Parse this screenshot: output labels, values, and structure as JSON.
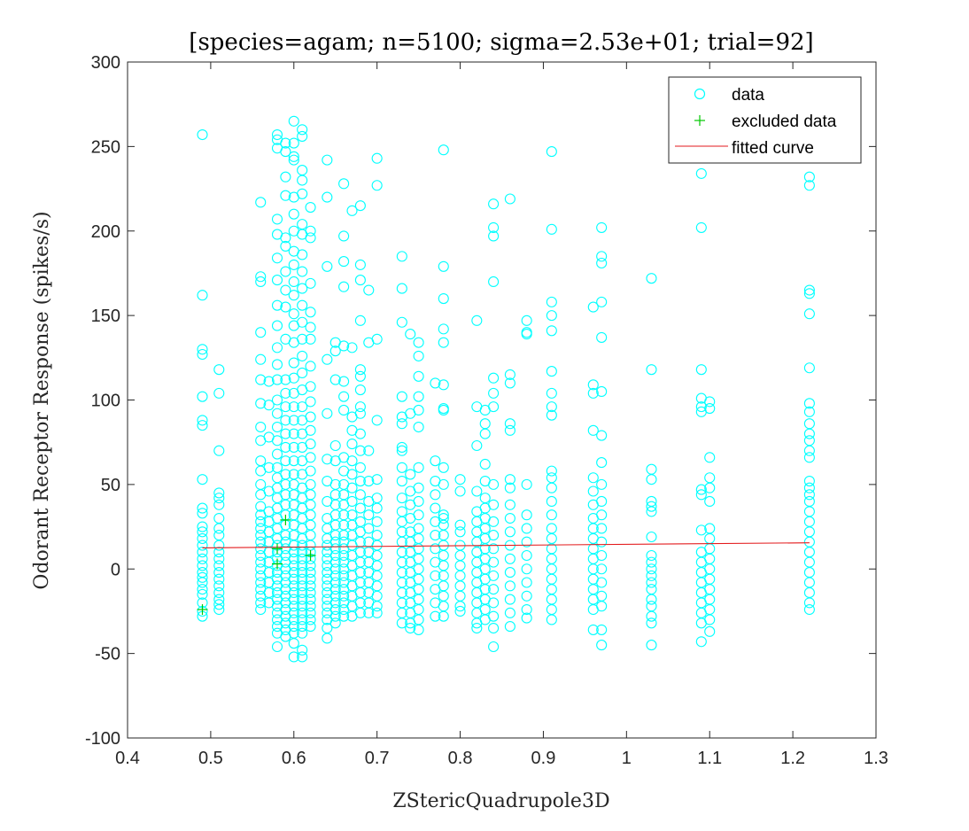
{
  "chart_data": {
    "type": "scatter",
    "title": "[species=agam; n=5100; sigma=2.53e+01; trial=92]",
    "xlabel": "ZStericQuadrupole3D",
    "ylabel": "Odorant Receptor Response (spikes/s)",
    "xlim": [
      0.4,
      1.3
    ],
    "ylim": [
      -100,
      300
    ],
    "xticks": [
      0.4,
      0.5,
      0.6,
      0.7,
      0.8,
      0.9,
      1.0,
      1.1,
      1.2,
      1.3
    ],
    "xtick_labels": [
      "0.4",
      "0.5",
      "0.6",
      "0.7",
      "0.8",
      "0.9",
      "1",
      "1.1",
      "1.2",
      "1.3"
    ],
    "yticks": [
      -100,
      -50,
      0,
      50,
      100,
      150,
      200,
      250,
      300
    ],
    "ytick_labels": [
      "-100",
      "-50",
      "0",
      "50",
      "100",
      "150",
      "200",
      "250",
      "300"
    ],
    "grid": false,
    "legend_position": "top-right",
    "colors": {
      "data": "#00ffff",
      "excluded": "#00c800",
      "fit": "#e31a1c",
      "axes": "#262626"
    },
    "series": [
      {
        "name": "data",
        "marker": "circle",
        "columns": [
          {
            "x": 0.49,
            "y": [
              257,
              162,
              130,
              127,
              102,
              88,
              85,
              53,
              36,
              33,
              25,
              22,
              18,
              14,
              10,
              6,
              2,
              -2,
              -5,
              -8,
              -12,
              -15,
              -20,
              -25,
              -28
            ]
          },
          {
            "x": 0.51,
            "y": [
              118,
              104,
              70,
              45,
              42,
              38,
              30,
              24,
              20,
              14,
              10,
              6,
              2,
              -2,
              -6,
              -10,
              -14,
              -18,
              -21,
              -24
            ]
          },
          {
            "x": 0.56,
            "y": [
              217,
              173,
              170,
              140,
              124,
              112,
              98,
              84,
              76,
              64,
              58,
              50,
              44,
              37,
              32,
              28,
              24,
              20,
              16,
              12,
              8,
              4,
              0,
              -4,
              -8,
              -12,
              -16,
              -20,
              -24
            ]
          },
          {
            "x": 0.57,
            "y": [
              111,
              97,
              78,
              60,
              46,
              34,
              28,
              22,
              16,
              10,
              4,
              -2,
              -8,
              -14,
              -20
            ]
          },
          {
            "x": 0.58,
            "y": [
              257,
              254,
              249,
              207,
              198,
              184,
              171,
              156,
              144,
              131,
              121,
              112,
              100,
              92,
              84,
              76,
              68,
              60,
              54,
              48,
              42,
              36,
              30,
              24,
              18,
              14,
              10,
              6,
              2,
              -2,
              -6,
              -10,
              -14,
              -18,
              -22,
              -26,
              -30,
              -34,
              -38,
              -46
            ]
          },
          {
            "x": 0.59,
            "y": [
              252,
              247,
              232,
              221,
              196,
              191,
              176,
              165,
              155,
              136,
              112,
              104,
              96,
              88,
              80,
              72,
              64,
              56,
              50,
              44,
              38,
              32,
              26,
              20,
              16,
              12,
              8,
              4,
              0,
              -4,
              -8,
              -12,
              -16,
              -20,
              -24,
              -28,
              -32,
              -36,
              -40
            ]
          },
          {
            "x": 0.6,
            "y": [
              265,
              252,
              244,
              242,
              220,
              210,
              200,
              188,
              180,
              170,
              162,
              151,
              144,
              134,
              122,
              113,
              104,
              96,
              88,
              80,
              72,
              64,
              56,
              50,
              44,
              38,
              32,
              26,
              20,
              14,
              10,
              6,
              2,
              -2,
              -6,
              -10,
              -14,
              -18,
              -22,
              -26,
              -30,
              -34,
              -38,
              -44,
              -52
            ]
          },
          {
            "x": 0.61,
            "y": [
              260,
              256,
              236,
              230,
              222,
              204,
              198,
              186,
              176,
              166,
              156,
              146,
              136,
              126,
              116,
              106,
              96,
              88,
              80,
              72,
              64,
              56,
              48,
              42,
              36,
              30,
              24,
              18,
              14,
              10,
              6,
              2,
              -2,
              -6,
              -10,
              -14,
              -18,
              -22,
              -26,
              -30,
              -34,
              -38,
              -48,
              -52
            ]
          },
          {
            "x": 0.62,
            "y": [
              214,
              200,
              196,
              169,
              152,
              143,
              136,
              120,
              108,
              99,
              90,
              82,
              74,
              66,
              58,
              50,
              44,
              38,
              32,
              26,
              20,
              14,
              10,
              6,
              2,
              -2,
              -6,
              -10,
              -14,
              -18,
              -22,
              -26,
              -30,
              -34
            ]
          },
          {
            "x": 0.64,
            "y": [
              242,
              220,
              179,
              124,
              92,
              65,
              52,
              40,
              30,
              24,
              18,
              14,
              10,
              6,
              2,
              -2,
              -6,
              -10,
              -14,
              -18,
              -22,
              -26,
              -30,
              -35,
              -41
            ]
          },
          {
            "x": 0.65,
            "y": [
              134,
              129,
              112,
              73,
              64,
              50,
              44,
              38,
              32,
              26,
              20,
              16,
              12,
              8,
              4,
              0,
              -4,
              -8,
              -12,
              -16,
              -20,
              -24,
              -28,
              -32
            ]
          },
          {
            "x": 0.66,
            "y": [
              228,
              197,
              182,
              167,
              132,
              111,
              102,
              94,
              66,
              58,
              50,
              44,
              38,
              32,
              26,
              20,
              16,
              12,
              8,
              4,
              0,
              -4,
              -8,
              -12,
              -16,
              -20,
              -24,
              -28
            ]
          },
          {
            "x": 0.67,
            "y": [
              212,
              131,
              90,
              82,
              74,
              64,
              56,
              48,
              40,
              32,
              26,
              20,
              14,
              8,
              2,
              -4,
              -10,
              -16,
              -22,
              -28
            ]
          },
          {
            "x": 0.68,
            "y": [
              215,
              180,
              171,
              147,
              118,
              114,
              106,
              96,
              92,
              80,
              70,
              60,
              52,
              44,
              36,
              28,
              22,
              16,
              10,
              4,
              -2,
              -8,
              -14,
              -20,
              -26
            ]
          },
          {
            "x": 0.69,
            "y": [
              165,
              134,
              70,
              52,
              40,
              32,
              24,
              16,
              10,
              4,
              -2,
              -8,
              -14,
              -20,
              -26
            ]
          },
          {
            "x": 0.7,
            "y": [
              243,
              227,
              136,
              88,
              53,
              42,
              36,
              28,
              20,
              14,
              8,
              2,
              -4,
              -10,
              -16,
              -22,
              -26
            ]
          },
          {
            "x": 0.73,
            "y": [
              185,
              166,
              146,
              102,
              90,
              86,
              72,
              70,
              60,
              52,
              42,
              34,
              28,
              22,
              16,
              10,
              4,
              -2,
              -8,
              -14,
              -20,
              -26,
              -32
            ]
          },
          {
            "x": 0.74,
            "y": [
              139,
              92,
              56,
              46,
              38,
              30,
              22,
              16,
              10,
              4,
              -2,
              -8,
              -14,
              -20,
              -26,
              -32,
              -35
            ]
          },
          {
            "x": 0.75,
            "y": [
              134,
              126,
              114,
              102,
              94,
              84,
              60,
              48,
              40,
              32,
              24,
              18,
              12,
              6,
              0,
              -6,
              -12,
              -18,
              -24,
              -30,
              -36
            ]
          },
          {
            "x": 0.77,
            "y": [
              110,
              64,
              52,
              44,
              36,
              28,
              20,
              12,
              4,
              -4,
              -12,
              -20,
              -28
            ]
          },
          {
            "x": 0.78,
            "y": [
              248,
              179,
              160,
              142,
              134,
              109,
              95,
              94,
              60,
              50,
              32,
              30,
              26,
              20,
              14,
              8,
              2,
              -4,
              -10,
              -16,
              -22,
              -28
            ]
          },
          {
            "x": 0.8,
            "y": [
              53,
              46,
              26,
              22,
              14,
              8,
              2,
              -4,
              -10,
              -16,
              -22,
              -25
            ]
          },
          {
            "x": 0.82,
            "y": [
              147,
              96,
              73,
              46,
              34,
              28,
              22,
              16,
              10,
              4,
              -2,
              -8,
              -14,
              -20,
              -26,
              -32,
              -35
            ]
          },
          {
            "x": 0.83,
            "y": [
              94,
              86,
              80,
              62,
              52,
              42,
              36,
              30,
              24,
              18,
              12,
              6,
              0,
              -6,
              -12,
              -18,
              -24,
              -30
            ]
          },
          {
            "x": 0.84,
            "y": [
              216,
              202,
              197,
              170,
              113,
              104,
              96,
              50,
              38,
              28,
              20,
              12,
              4,
              -4,
              -12,
              -20,
              -28,
              -35,
              -46
            ]
          },
          {
            "x": 0.86,
            "y": [
              219,
              115,
              110,
              86,
              82,
              53,
              48,
              38,
              30,
              22,
              14,
              6,
              -2,
              -10,
              -18,
              -26,
              -34
            ]
          },
          {
            "x": 0.88,
            "y": [
              147,
              140,
              139,
              50,
              32,
              24,
              16,
              8,
              0,
              -8,
              -16,
              -24,
              -29
            ]
          },
          {
            "x": 0.91,
            "y": [
              247,
              201,
              158,
              150,
              141,
              117,
              104,
              96,
              91,
              58,
              54,
              48,
              40,
              32,
              24,
              18,
              12,
              6,
              0,
              -6,
              -12,
              -18,
              -24,
              -30
            ]
          },
          {
            "x": 0.96,
            "y": [
              155,
              109,
              104,
              82,
              54,
              46,
              38,
              30,
              24,
              18,
              12,
              6,
              0,
              -6,
              -12,
              -18,
              -24,
              -36
            ]
          },
          {
            "x": 0.97,
            "y": [
              202,
              185,
              181,
              158,
              137,
              105,
              79,
              63,
              50,
              40,
              32,
              24,
              16,
              8,
              0,
              -8,
              -16,
              -22,
              -36,
              -45
            ]
          },
          {
            "x": 1.03,
            "y": [
              172,
              118,
              59,
              53,
              40,
              37,
              34,
              19,
              8,
              4,
              0,
              -4,
              -8,
              -12,
              -18,
              -22,
              -28,
              -32,
              -45
            ]
          },
          {
            "x": 1.09,
            "y": [
              234,
              202,
              118,
              101,
              96,
              93,
              47,
              44,
              23,
              10,
              4,
              -2,
              -8,
              -14,
              -20,
              -26,
              -32,
              -43
            ]
          },
          {
            "x": 1.1,
            "y": [
              99,
              95,
              66,
              54,
              48,
              40,
              24,
              18,
              12,
              6,
              0,
              -6,
              -12,
              -18,
              -24,
              -30,
              -37
            ]
          },
          {
            "x": 1.22,
            "y": [
              232,
              227,
              165,
              163,
              151,
              119,
              98,
              93,
              86,
              80,
              76,
              70,
              66,
              52,
              48,
              44,
              40,
              34,
              28,
              22,
              16,
              10,
              4,
              -2,
              -8,
              -14,
              -20,
              -24
            ]
          }
        ]
      },
      {
        "name": "excluded data",
        "marker": "plus",
        "points": [
          {
            "x": 0.49,
            "y": -24
          },
          {
            "x": 0.58,
            "y": 12
          },
          {
            "x": 0.58,
            "y": 3
          },
          {
            "x": 0.59,
            "y": 29
          },
          {
            "x": 0.62,
            "y": 8
          }
        ]
      },
      {
        "name": "fitted curve",
        "marker": "line",
        "points": [
          {
            "x": 0.49,
            "y": 12.5
          },
          {
            "x": 1.22,
            "y": 15.5
          }
        ]
      }
    ]
  }
}
